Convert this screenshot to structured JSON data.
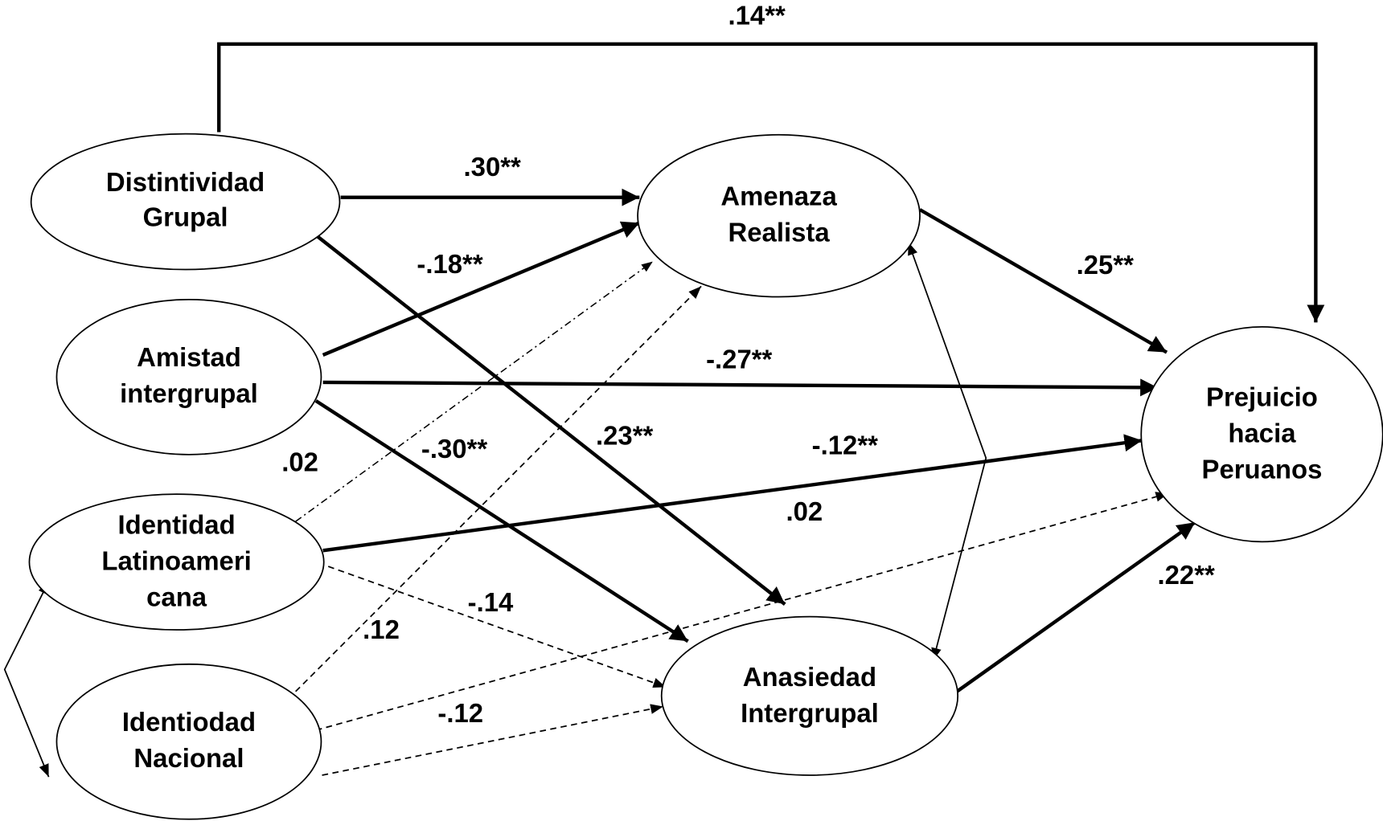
{
  "nodes": [
    {
      "lines": [
        "Distintividad",
        "Grupal"
      ]
    },
    {
      "lines": [
        "Amistad",
        "intergrupal"
      ]
    },
    {
      "lines": [
        "Identidad",
        "Latinoameri",
        "cana"
      ]
    },
    {
      "lines": [
        "Identiodad",
        "Nacional"
      ]
    },
    {
      "lines": [
        "Amenaza",
        "Realista"
      ]
    },
    {
      "lines": [
        "Anasiedad",
        "Intergrupal"
      ]
    },
    {
      "lines": [
        "Prejuicio",
        "hacia",
        "Peruanos"
      ]
    }
  ],
  "paths": [
    {
      "label": ".14**"
    },
    {
      "label": ".30**"
    },
    {
      "label": "-.18**"
    },
    {
      "label": "-.27**"
    },
    {
      "label": "-.30**"
    },
    {
      "label": ".23**"
    },
    {
      "label": ".02"
    },
    {
      "label": ".12"
    },
    {
      "label": "-.12**"
    },
    {
      "label": "-.14"
    },
    {
      "label": ".02"
    },
    {
      "label": "-.12"
    },
    {
      "label": ".25**"
    },
    {
      "label": ".22**"
    }
  ]
}
